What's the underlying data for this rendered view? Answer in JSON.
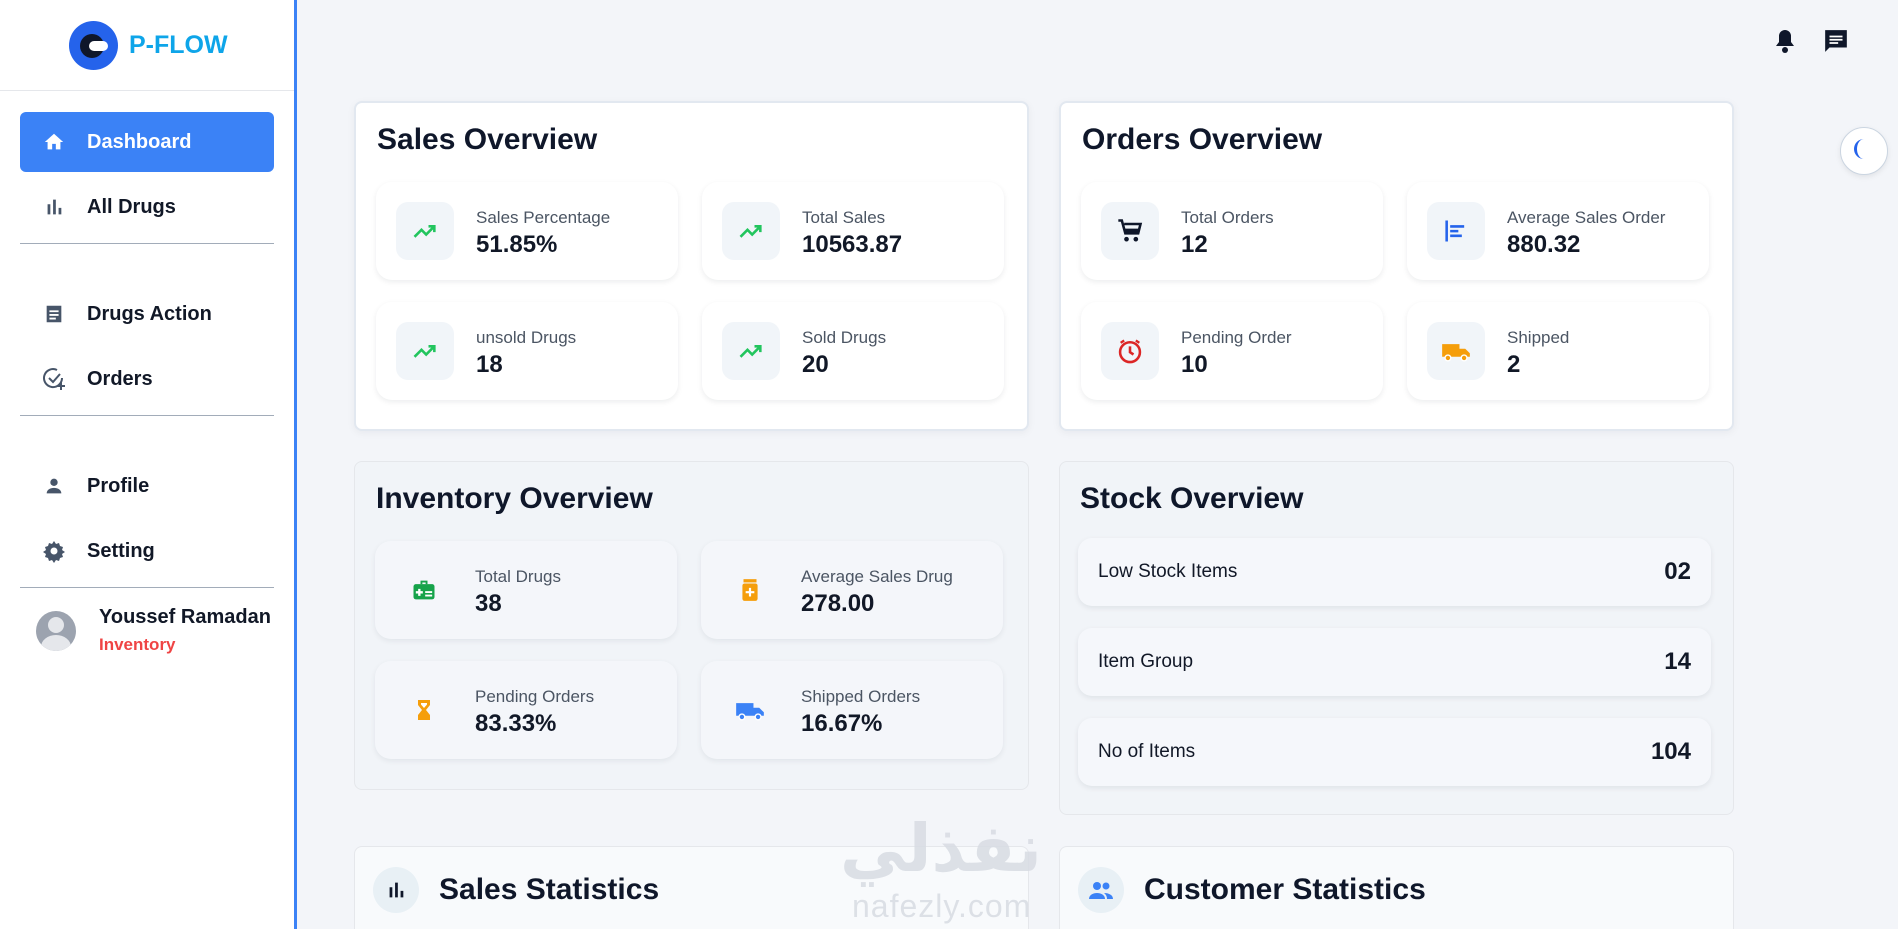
{
  "brand": {
    "name": "P-FLOW"
  },
  "sidebar": {
    "items": [
      {
        "label": "Dashboard",
        "icon": "home-icon",
        "active": true
      },
      {
        "label": "All Drugs",
        "icon": "bar-chart-icon"
      },
      {
        "label": "Drugs Action",
        "icon": "document-icon"
      },
      {
        "label": "Orders",
        "icon": "check-plus-icon"
      },
      {
        "label": "Profile",
        "icon": "person-icon"
      },
      {
        "label": "Setting",
        "icon": "gear-icon"
      }
    ],
    "user": {
      "name": "Youssef Ramadan",
      "role": "Inventory"
    }
  },
  "topbar": {
    "icons": [
      "bell-icon",
      "chat-icon"
    ],
    "theme_toggle": "moon-icon"
  },
  "sales_overview": {
    "title": "Sales Overview",
    "stats": [
      {
        "label": "Sales Percentage",
        "value": "51.85%",
        "icon": "trending-up-icon"
      },
      {
        "label": "Total Sales",
        "value": "10563.87",
        "icon": "trending-up-icon"
      },
      {
        "label": "unsold Drugs",
        "value": "18",
        "icon": "trending-up-icon"
      },
      {
        "label": "Sold Drugs",
        "value": "20",
        "icon": "trending-up-icon"
      }
    ]
  },
  "orders_overview": {
    "title": "Orders Overview",
    "stats": [
      {
        "label": "Total Orders",
        "value": "12",
        "icon": "cart-icon"
      },
      {
        "label": "Average Sales Order",
        "value": "880.32",
        "icon": "align-left-icon"
      },
      {
        "label": "Pending Order",
        "value": "10",
        "icon": "clock-icon"
      },
      {
        "label": "Shipped",
        "value": "2",
        "icon": "truck-icon"
      }
    ]
  },
  "inventory_overview": {
    "title": "Inventory Overview",
    "stats": [
      {
        "label": "Total Drugs",
        "value": "38",
        "icon": "medical-kit-icon"
      },
      {
        "label": "Average Sales Drug",
        "value": "278.00",
        "icon": "medicine-bottle-icon"
      },
      {
        "label": "Pending Orders",
        "value": "83.33%",
        "icon": "hourglass-icon"
      },
      {
        "label": "Shipped Orders",
        "value": "16.67%",
        "icon": "truck-icon"
      }
    ]
  },
  "stock_overview": {
    "title": "Stock Overview",
    "rows": [
      {
        "label": "Low Stock Items",
        "value": "02"
      },
      {
        "label": "Item Group",
        "value": "14"
      },
      {
        "label": "No of Items",
        "value": "104"
      }
    ]
  },
  "sales_statistics": {
    "title": "Sales Statistics",
    "icon": "bar-chart-icon"
  },
  "customer_statistics": {
    "title": "Customer Statistics",
    "icon": "people-icon"
  },
  "watermark": {
    "arabic": "نفذلي",
    "latin": "nafezly.com"
  },
  "colors": {
    "accent": "#3b82f6",
    "brand_text": "#0ea5e9",
    "role": "#ef4444",
    "trend": "#22c55e",
    "warning": "#f59e0b",
    "danger": "#dc2626"
  }
}
